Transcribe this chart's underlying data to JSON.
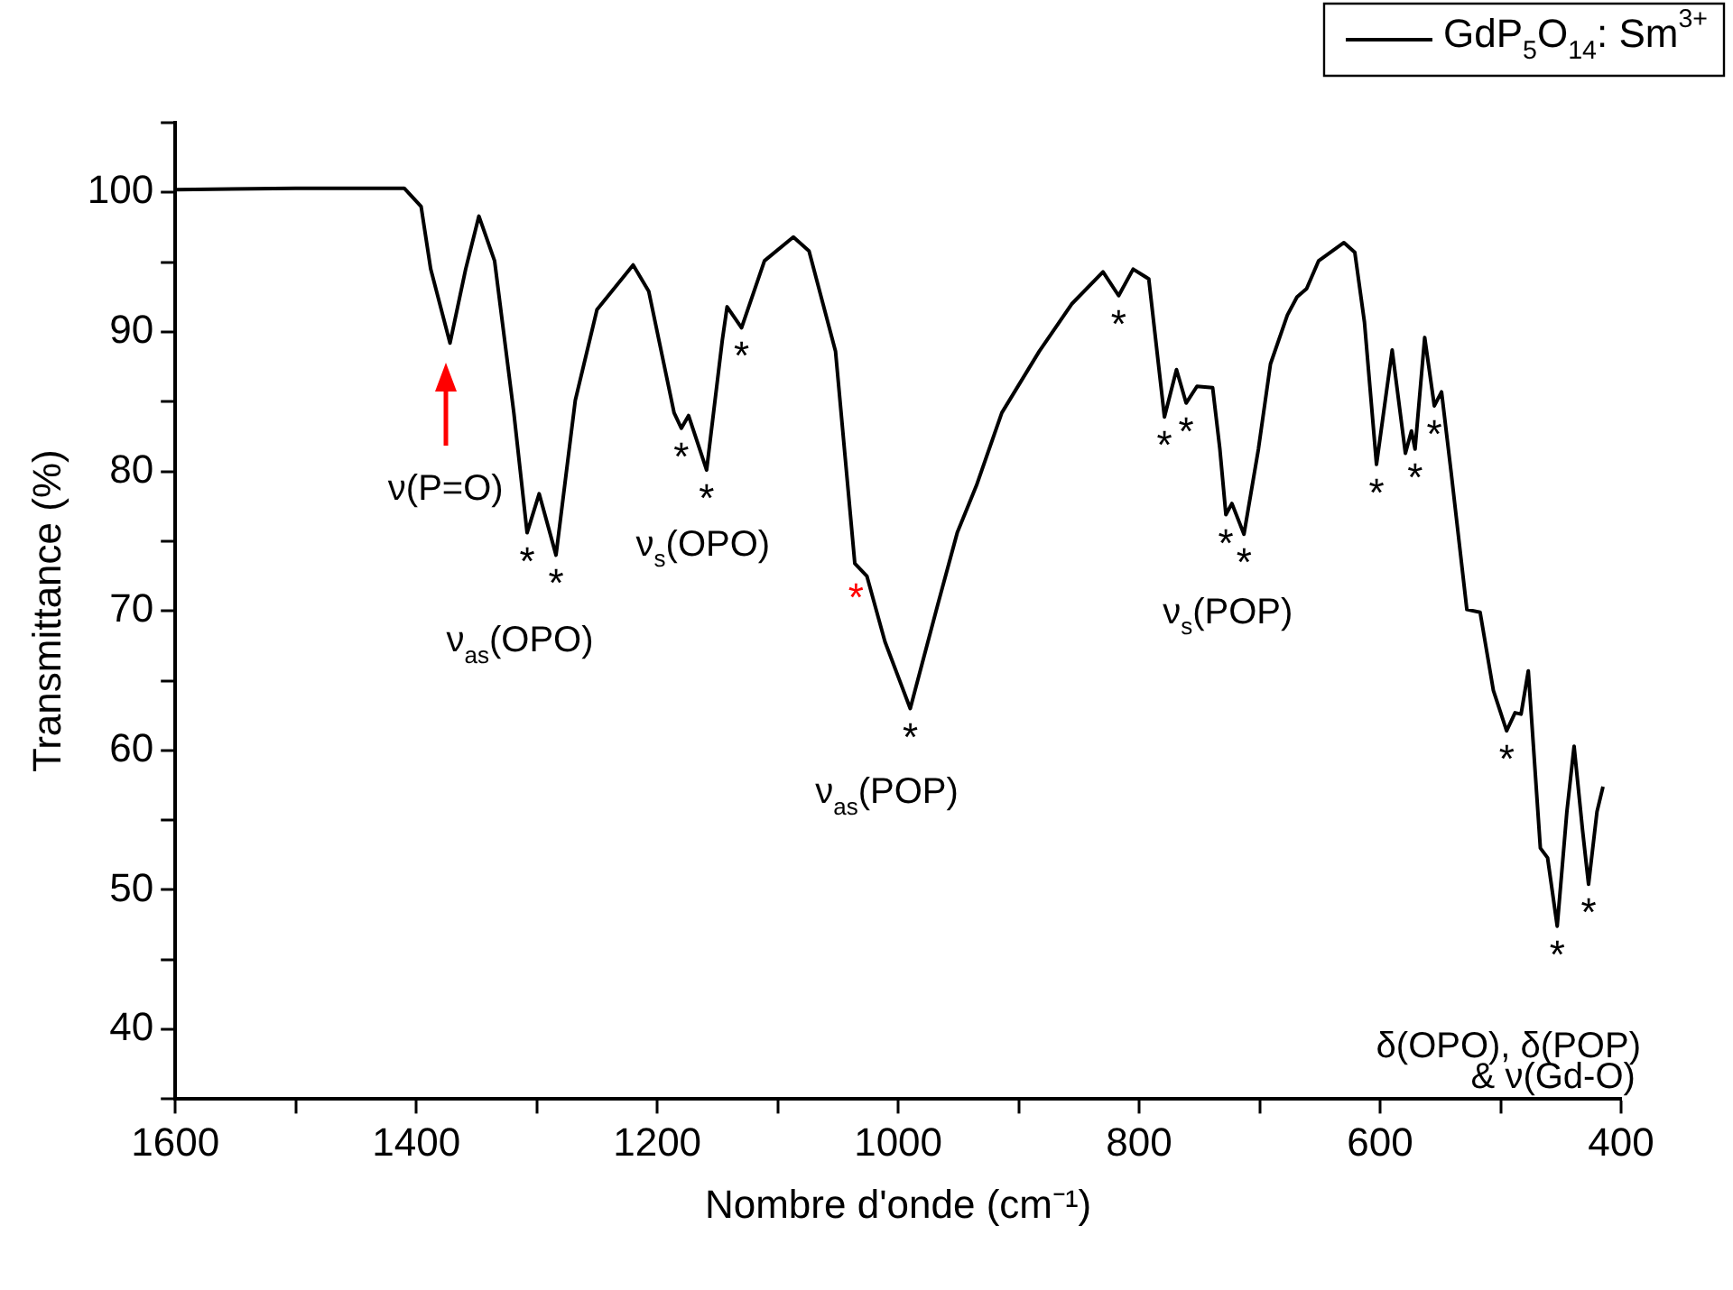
{
  "chart_data": {
    "type": "line",
    "xlabel": "Nombre d'onde (cm⁻¹)",
    "ylabel": "Transmittance (%)",
    "xlim": [
      1600,
      400
    ],
    "ylim": [
      35,
      105
    ],
    "xticks": [
      1600,
      {
        "value": 1500,
        "label": null
      },
      1400,
      {
        "value": 1300,
        "label": null
      },
      1200,
      {
        "value": 1100,
        "label": null
      },
      1000,
      {
        "value": 900,
        "label": null
      },
      800,
      {
        "value": 700,
        "label": null
      },
      600,
      {
        "value": 500,
        "label": null
      },
      400
    ],
    "yticks": [
      {
        "value": 35,
        "label": null
      },
      40,
      {
        "value": 45,
        "label": null
      },
      50,
      {
        "value": 55,
        "label": null
      },
      60,
      {
        "value": 65,
        "label": null
      },
      70,
      {
        "value": 75,
        "label": null
      },
      80,
      {
        "value": 85,
        "label": null
      },
      90,
      {
        "value": 95,
        "label": null
      },
      100,
      {
        "value": 105,
        "label": null
      }
    ],
    "grid": false,
    "legend": "top right",
    "marker": "none",
    "line_style": "solid",
    "series": [
      {
        "name": "GdP$_{5}$O$_{14}$: Sm$^{3+}$",
        "color": "#000000",
        "x": [
          1600,
          1500,
          1410,
          1396,
          1388,
          1372,
          1359,
          1348,
          1335,
          1319,
          1308,
          1298,
          1284,
          1268,
          1250,
          1220,
          1207,
          1186,
          1180,
          1174,
          1159,
          1146,
          1142,
          1130,
          1111,
          1087,
          1074,
          1052,
          1036,
          1026,
          1011,
          990,
          967,
          951,
          935,
          914,
          883,
          856,
          830,
          817,
          805,
          792,
          784,
          779,
          769,
          761,
          752,
          739,
          733,
          728,
          723,
          713,
          701,
          691,
          677,
          669,
          661,
          651,
          630,
          621,
          613,
          603,
          590,
          579,
          574,
          571,
          563,
          555,
          549,
          541,
          528,
          517,
          506,
          495,
          488,
          483,
          477,
          467,
          461,
          453,
          445,
          439,
          432,
          427,
          420,
          415
        ],
        "values": [
          100.2,
          100.3,
          100.3,
          99.0,
          94.5,
          89.2,
          94.5,
          98.3,
          95.1,
          84.2,
          75.6,
          78.4,
          74.0,
          85.1,
          91.6,
          94.8,
          92.9,
          84.2,
          83.1,
          84.0,
          80.1,
          89.4,
          91.8,
          90.3,
          95.1,
          96.8,
          95.8,
          88.6,
          73.4,
          72.5,
          67.8,
          63.0,
          70.5,
          75.6,
          79.0,
          84.2,
          88.6,
          92.0,
          94.3,
          92.6,
          94.5,
          93.8,
          87.7,
          83.9,
          87.3,
          84.9,
          86.1,
          86.0,
          81.6,
          76.9,
          77.7,
          75.5,
          81.6,
          87.7,
          91.2,
          92.5,
          93.1,
          95.1,
          96.4,
          95.7,
          90.7,
          80.5,
          88.7,
          81.3,
          82.9,
          81.6,
          89.6,
          84.7,
          85.7,
          79.9,
          70.1,
          69.9,
          64.3,
          61.4,
          62.7,
          62.6,
          65.7,
          53.0,
          52.3,
          47.4,
          55.6,
          60.3,
          54.3,
          50.4,
          55.6,
          57.4
        ]
      }
    ],
    "annotations": [
      "ν(P=O)",
      {
        "text": "ν$_{as}$(OPO)",
        "x": 1284,
        "y": 74.0
      },
      {
        "text": "ν$_{s}$(OPO)",
        "x": 1159,
        "y": 80.1
      },
      {
        "text": "ν$_{as}$(POP)",
        "x": 990,
        "y": 63.0
      },
      {
        "text": "ν$_{s}$(POP)",
        "x": 713,
        "y": 75.5
      },
      {
        "text": "δ(OPO), δ(POP)",
        "x": 453,
        "y": 47.4
      },
      "& ν(Gd-O)",
      {
        "text": "*",
        "x": 1308,
        "y": 75.6
      },
      {
        "text": "*",
        "x": 1284,
        "y": 74.0
      },
      {
        "text": "*",
        "x": 1180,
        "y": 83.1
      },
      {
        "text": "*",
        "x": 1159,
        "y": 80.1
      },
      {
        "text": "*",
        "x": 1130,
        "y": 90.3
      },
      {
        "text": "*",
        "x": 1026,
        "y": 72.5
      },
      {
        "text": "*",
        "x": 990,
        "y": 63.0
      },
      {
        "text": "*",
        "x": 817,
        "y": 92.6
      },
      {
        "text": "*",
        "x": 779,
        "y": 83.9
      },
      {
        "text": "*",
        "x": 761,
        "y": 84.9
      },
      {
        "text": "*",
        "x": 728,
        "y": 76.9
      },
      {
        "text": "*",
        "x": 713,
        "y": 75.5
      },
      {
        "text": "*",
        "x": 603,
        "y": 80.5
      },
      {
        "text": "*",
        "x": 571,
        "y": 81.6
      },
      {
        "text": "*",
        "x": 555,
        "y": 84.7
      },
      {
        "text": "*",
        "x": 495,
        "y": 61.4
      },
      {
        "text": "*",
        "x": 453,
        "y": 47.4
      },
      {
        "text": "*",
        "x": 427,
        "y": 50.4
      }
    ]
  }
}
